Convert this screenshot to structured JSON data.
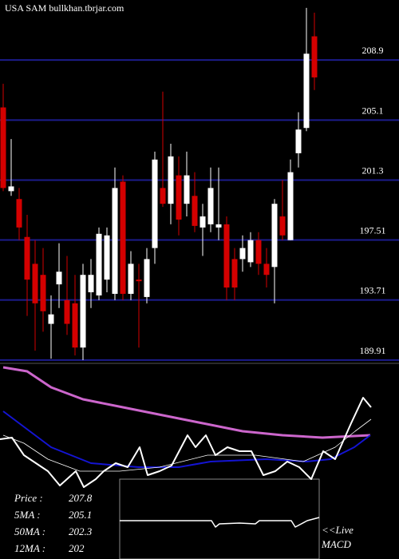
{
  "chart_data": [
    {
      "type": "candlestick",
      "title": "USA SAM bullkhan.tbrjar.com",
      "open": [
        205.9,
        200.6,
        200.1,
        197.7,
        196.0,
        195.3,
        192.2,
        194.7,
        193.7,
        193.5,
        190.7,
        194.2,
        194.0,
        195.0,
        194.1,
        201.2,
        194.1,
        195.0,
        193.9,
        197.0,
        200.8,
        199.8,
        201.6,
        199.8,
        200.3,
        198.3,
        198.5,
        198.3,
        198.5,
        196.3,
        196.3,
        196.1,
        197.5,
        196.0,
        195.8,
        199.0,
        197.5,
        203.0,
        204.6,
        210.4
      ],
      "high": [
        207.4,
        203.9,
        200.8,
        199.1,
        197.5,
        197.0,
        194.0,
        197.3,
        196.5,
        195.3,
        196.0,
        196.3,
        198.3,
        198.3,
        202.1,
        201.6,
        196.8,
        196.0,
        197.0,
        203.1,
        206.9,
        203.6,
        202.8,
        203.1,
        201.8,
        199.8,
        202.1,
        202.1,
        199.0,
        197.0,
        197.8,
        198.0,
        198.0,
        197.0,
        200.1,
        201.3,
        202.6,
        205.6,
        212.2,
        211.9
      ],
      "low": [
        200.6,
        200.3,
        197.5,
        192.7,
        190.5,
        191.7,
        190.0,
        193.2,
        191.5,
        190.2,
        189.9,
        193.2,
        193.7,
        194.2,
        193.7,
        193.7,
        193.7,
        190.7,
        193.5,
        196.0,
        199.6,
        198.5,
        197.8,
        199.0,
        198.0,
        196.5,
        198.0,
        197.5,
        193.7,
        193.7,
        195.5,
        195.8,
        195.3,
        194.5,
        193.5,
        197.5,
        197.5,
        202.1,
        204.4,
        207.0
      ],
      "close": [
        200.8,
        200.9,
        198.3,
        195.0,
        193.5,
        193.0,
        192.8,
        195.5,
        192.2,
        190.7,
        195.3,
        195.3,
        197.9,
        197.8,
        200.8,
        194.1,
        196.0,
        194.9,
        196.3,
        202.6,
        199.8,
        202.8,
        198.8,
        201.6,
        198.4,
        199.0,
        200.8,
        198.5,
        194.5,
        194.5,
        197.0,
        197.5,
        196.0,
        195.3,
        199.8,
        197.8,
        201.8,
        204.5,
        209.3,
        207.8
      ],
      "up_color": "#ffffff",
      "down_color": "#d40000",
      "grid_color": "#1c1c8c",
      "ylim": [
        189.7,
        212.7
      ],
      "yticks": [
        208.9,
        205.1,
        201.3,
        197.51,
        193.71,
        189.91
      ],
      "grid": true
    },
    {
      "type": "line",
      "xlim": [
        -0.4,
        49.6
      ],
      "ylim": [
        0,
        245
      ],
      "series": [
        {
          "color": "#cc66cc",
          "width": 3,
          "x": [
            0,
            3,
            6,
            10,
            15,
            20,
            25,
            30,
            35,
            40,
            44,
            46
          ],
          "values": [
            240,
            235,
            215,
            200,
            190,
            180,
            170,
            160,
            155,
            152,
            154,
            155
          ]
        },
        {
          "color": "#1414d2",
          "width": 2,
          "x": [
            0,
            2,
            6,
            11,
            17,
            22,
            26,
            33,
            38,
            41,
            44,
            46
          ],
          "values": [
            185,
            170,
            140,
            120,
            115,
            115,
            122,
            125,
            122,
            125,
            140,
            155
          ]
        },
        {
          "color": "#ffffff",
          "width": 0.8,
          "x": [
            0,
            2.6,
            5.6,
            9.6,
            14.6,
            19.6,
            25.6,
            31.6,
            37.6,
            41.6,
            44.1,
            46.1
          ],
          "values": [
            155,
            145,
            125,
            110,
            110,
            115,
            130,
            130,
            122,
            140,
            160,
            175
          ]
        },
        {
          "color": "#ffffff",
          "width": 2,
          "x": [
            -0.4,
            1.1,
            2.6,
            4.1,
            5.6,
            7.1,
            9.1,
            10.1,
            11.6,
            12.6,
            14.1,
            15.6,
            17.1,
            18.1,
            19.6,
            21.1,
            23.1,
            24.1,
            25.4,
            26.6,
            28.1,
            29.6,
            31.1,
            32.6,
            34.1,
            35.6,
            37.1,
            38.6,
            40.1,
            41.6,
            43.6,
            45.1,
            46.1
          ],
          "values": [
            150,
            152,
            130,
            120,
            110,
            92,
            110,
            90,
            100,
            110,
            120,
            115,
            140,
            105,
            110,
            117,
            155,
            140,
            155,
            130,
            140,
            135,
            135,
            105,
            110,
            122,
            115,
            100,
            135,
            125,
            170,
            202,
            190
          ]
        }
      ]
    },
    {
      "type": "line",
      "label": "MACD",
      "annotation": "<<Live",
      "xlim": [
        -0.4,
        49.6
      ],
      "ylim": [
        0,
        100
      ],
      "series": [
        {
          "color": "#ffffff",
          "width": 1.5,
          "x": [
            14.6,
            26.1,
            26.6,
            27.1,
            29.6,
            31.6,
            32.1,
            36.1,
            36.6,
            38.1,
            39.6
          ],
          "values": [
            48,
            48,
            40,
            44,
            45,
            44,
            48,
            48,
            40,
            48,
            52
          ]
        }
      ]
    }
  ],
  "stats": [
    {
      "label": "Price  :",
      "value": 207.8
    },
    {
      "label": "5MA :",
      "value": 205.1
    },
    {
      "label": "50MA :",
      "value": 202.3
    },
    {
      "label": "12MA :",
      "value": 202
    }
  ]
}
